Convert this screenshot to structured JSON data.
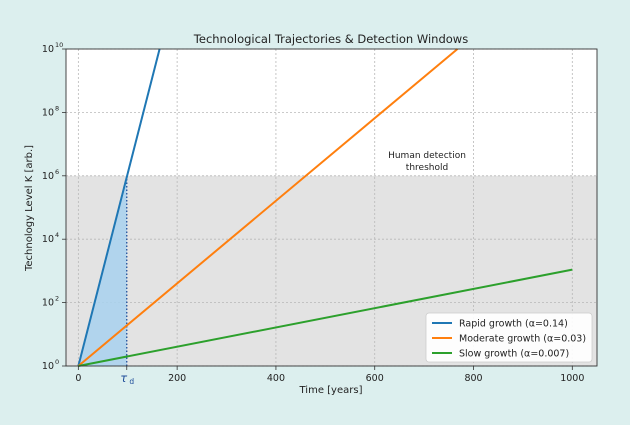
{
  "chart_data": {
    "type": "line",
    "title": "Technological Trajectories & Detection Windows",
    "xlabel": "Time [years]",
    "ylabel": "Technology Level K [arb.]",
    "xlim": [
      -25,
      1050
    ],
    "ylim_log10": [
      0,
      10
    ],
    "y_scale": "log",
    "x_ticks": [
      0,
      200,
      400,
      600,
      800,
      1000
    ],
    "y_tick_exponents": [
      0,
      2,
      4,
      6,
      8,
      10
    ],
    "grid": true,
    "legend_position": "lower-right",
    "series": [
      {
        "name": "Rapid growth (α=0.14)",
        "alpha": 0.14,
        "color": "#1f77b4"
      },
      {
        "name": "Moderate growth (α=0.03)",
        "alpha": 0.03,
        "color": "#ff7f0e"
      },
      {
        "name": "Slow growth (α=0.007)",
        "alpha": 0.007,
        "color": "#2ca02c"
      }
    ],
    "threshold": {
      "value_log10": 6,
      "label_line1": "Human detection",
      "label_line2": "threshold",
      "shade_color": "#e3e3e3"
    },
    "detection_time": {
      "x": 98,
      "label": "τ",
      "subscript": "d",
      "fill_color": "#a8d1ef"
    }
  }
}
